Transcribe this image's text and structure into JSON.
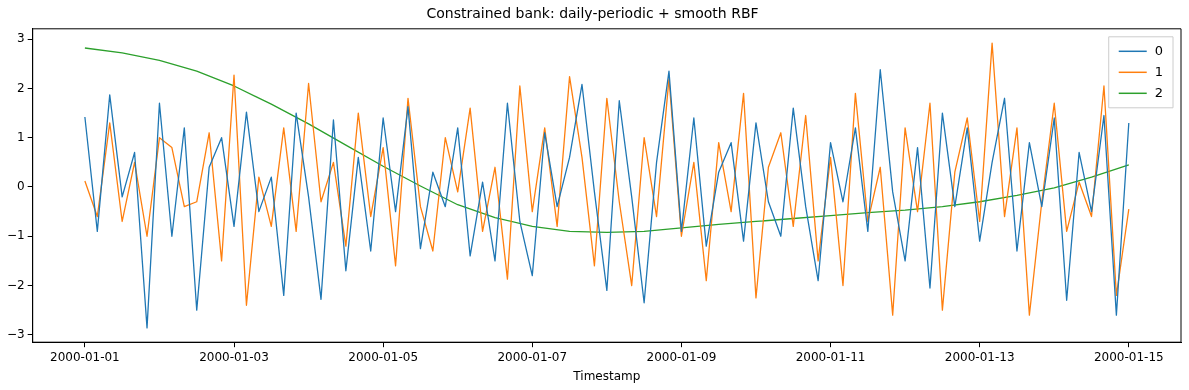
{
  "chart_data": {
    "type": "line",
    "title": "Constrained bank: daily-periodic + smooth RBF",
    "xlabel": "Timestamp",
    "x": [
      "2000-01-01T00:00",
      "2000-01-01T04:00",
      "2000-01-01T08:00",
      "2000-01-01T12:00",
      "2000-01-01T16:00",
      "2000-01-01T20:00",
      "2000-01-02T00:00",
      "2000-01-02T04:00",
      "2000-01-02T08:00",
      "2000-01-02T12:00",
      "2000-01-02T16:00",
      "2000-01-02T20:00",
      "2000-01-03T00:00",
      "2000-01-03T04:00",
      "2000-01-03T08:00",
      "2000-01-03T12:00",
      "2000-01-03T16:00",
      "2000-01-03T20:00",
      "2000-01-04T00:00",
      "2000-01-04T04:00",
      "2000-01-04T08:00",
      "2000-01-04T12:00",
      "2000-01-04T16:00",
      "2000-01-04T20:00",
      "2000-01-05T00:00",
      "2000-01-05T04:00",
      "2000-01-05T08:00",
      "2000-01-05T12:00",
      "2000-01-05T16:00",
      "2000-01-05T20:00",
      "2000-01-06T00:00",
      "2000-01-06T04:00",
      "2000-01-06T08:00",
      "2000-01-06T12:00",
      "2000-01-06T16:00",
      "2000-01-06T20:00",
      "2000-01-07T00:00",
      "2000-01-07T04:00",
      "2000-01-07T08:00",
      "2000-01-07T12:00",
      "2000-01-07T16:00",
      "2000-01-07T20:00",
      "2000-01-08T00:00",
      "2000-01-08T04:00",
      "2000-01-08T08:00",
      "2000-01-08T12:00",
      "2000-01-08T16:00",
      "2000-01-08T20:00",
      "2000-01-09T00:00",
      "2000-01-09T04:00",
      "2000-01-09T08:00",
      "2000-01-09T12:00",
      "2000-01-09T16:00",
      "2000-01-09T20:00",
      "2000-01-10T00:00",
      "2000-01-10T04:00",
      "2000-01-10T08:00",
      "2000-01-10T12:00",
      "2000-01-10T16:00",
      "2000-01-10T20:00",
      "2000-01-11T00:00",
      "2000-01-11T04:00",
      "2000-01-11T08:00",
      "2000-01-11T12:00",
      "2000-01-11T16:00",
      "2000-01-11T20:00",
      "2000-01-12T00:00",
      "2000-01-12T04:00",
      "2000-01-12T08:00",
      "2000-01-12T12:00",
      "2000-01-12T16:00",
      "2000-01-12T20:00",
      "2000-01-13T00:00",
      "2000-01-13T04:00",
      "2000-01-13T08:00",
      "2000-01-13T12:00",
      "2000-01-13T16:00",
      "2000-01-13T20:00",
      "2000-01-14T00:00",
      "2000-01-14T04:00",
      "2000-01-14T08:00",
      "2000-01-14T12:00",
      "2000-01-14T16:00",
      "2000-01-14T20:00",
      "2000-01-15T00:00"
    ],
    "series": [
      {
        "name": "0",
        "color": "#1f77b4",
        "values": [
          1.42,
          -0.9,
          1.87,
          -0.2,
          0.7,
          -2.86,
          1.7,
          -1.0,
          1.2,
          -2.5,
          0.4,
          1.0,
          -0.8,
          1.52,
          -0.5,
          0.2,
          -2.2,
          1.5,
          -0.2,
          -2.28,
          1.36,
          -1.7,
          0.6,
          -1.3,
          1.4,
          -0.5,
          1.63,
          -1.25,
          0.3,
          -0.4,
          1.2,
          -1.4,
          0.1,
          -1.5,
          1.7,
          -0.7,
          -1.8,
          1.1,
          -0.4,
          0.6,
          2.08,
          -0.1,
          -2.1,
          1.75,
          -0.2,
          -2.35,
          0.5,
          2.35,
          -0.9,
          1.4,
          -1.2,
          0.3,
          0.9,
          -1.1,
          1.3,
          -0.3,
          -1.0,
          1.6,
          -0.4,
          -1.9,
          0.9,
          -0.3,
          1.2,
          -0.9,
          2.38,
          -0.1,
          -1.5,
          0.8,
          -2.05,
          1.5,
          -0.4,
          1.2,
          -1.1,
          0.5,
          1.8,
          -1.3,
          0.9,
          -0.4,
          1.4,
          -2.3,
          0.7,
          -0.5,
          1.45,
          -2.6,
          1.3
        ]
      },
      {
        "name": "1",
        "color": "#ff7f0e",
        "values": [
          0.12,
          -0.6,
          1.3,
          -0.7,
          0.5,
          -1.0,
          1.0,
          0.8,
          -0.4,
          -0.3,
          1.1,
          -1.5,
          2.27,
          -2.4,
          0.2,
          -0.8,
          1.2,
          -0.9,
          2.1,
          -0.3,
          0.5,
          -1.2,
          1.5,
          -0.6,
          0.8,
          -1.6,
          1.8,
          -0.4,
          -1.3,
          1.0,
          -0.1,
          1.6,
          -0.9,
          0.4,
          -1.87,
          2.05,
          -0.5,
          1.2,
          -0.8,
          2.24,
          0.6,
          -1.6,
          1.8,
          -0.3,
          -2.0,
          1.0,
          -0.6,
          2.2,
          -1.0,
          0.5,
          -1.9,
          0.9,
          -0.5,
          1.9,
          -2.25,
          0.4,
          1.1,
          -0.8,
          1.45,
          -1.5,
          0.6,
          -2.0,
          1.9,
          -0.7,
          0.4,
          -2.6,
          1.2,
          -0.5,
          1.7,
          -2.5,
          0.3,
          1.4,
          -0.7,
          2.92,
          -0.6,
          1.2,
          -2.6,
          -0.3,
          1.7,
          -0.9,
          0.1,
          -0.6,
          2.05,
          -2.2,
          -0.45
        ]
      },
      {
        "name": "2",
        "color": "#2ca02c",
        "x": [
          "2000-01-01T00:00",
          "2000-01-01T12:00",
          "2000-01-02T00:00",
          "2000-01-02T12:00",
          "2000-01-03T00:00",
          "2000-01-03T12:00",
          "2000-01-04T00:00",
          "2000-01-04T12:00",
          "2000-01-05T00:00",
          "2000-01-05T12:00",
          "2000-01-06T00:00",
          "2000-01-06T12:00",
          "2000-01-07T00:00",
          "2000-01-07T12:00",
          "2000-01-08T00:00",
          "2000-01-08T12:00",
          "2000-01-09T00:00",
          "2000-01-09T12:00",
          "2000-01-10T00:00",
          "2000-01-10T12:00",
          "2000-01-11T00:00",
          "2000-01-11T12:00",
          "2000-01-12T00:00",
          "2000-01-12T12:00",
          "2000-01-13T00:00",
          "2000-01-13T12:00",
          "2000-01-14T00:00",
          "2000-01-14T12:00",
          "2000-01-15T00:00"
        ],
        "values": [
          2.82,
          2.72,
          2.57,
          2.35,
          2.05,
          1.68,
          1.28,
          0.85,
          0.42,
          0.02,
          -0.36,
          -0.62,
          -0.8,
          -0.9,
          -0.92,
          -0.9,
          -0.83,
          -0.76,
          -0.7,
          -0.64,
          -0.58,
          -0.52,
          -0.47,
          -0.4,
          -0.3,
          -0.17,
          -0.02,
          0.2,
          0.45
        ]
      }
    ],
    "xlim": [
      "1999-12-31T07:12",
      "2000-01-15T16:48"
    ],
    "xticks": [
      "2000-01-01",
      "2000-01-03",
      "2000-01-05",
      "2000-01-07",
      "2000-01-09",
      "2000-01-11",
      "2000-01-13",
      "2000-01-15"
    ],
    "ylim": [
      -3.15,
      3.21
    ],
    "yticks": [
      -3,
      -2,
      -1,
      0,
      1,
      2,
      3
    ],
    "grid": false,
    "legend": "top right",
    "marker": "none",
    "line_style": "solid"
  }
}
